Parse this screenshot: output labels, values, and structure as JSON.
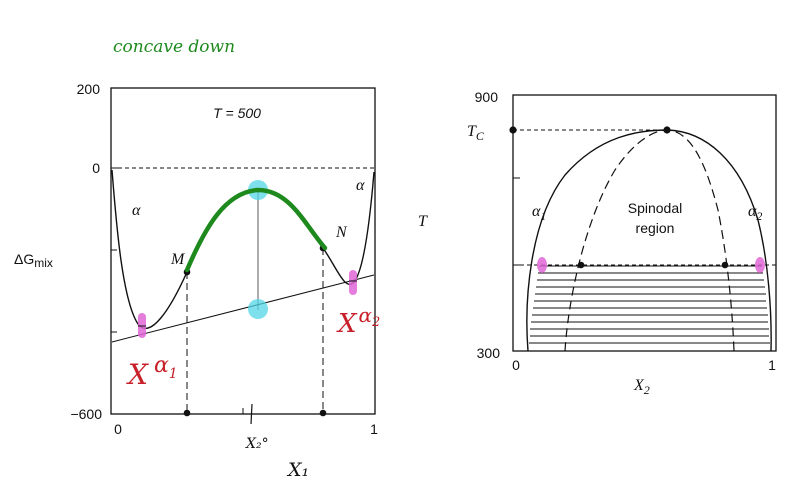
{
  "annotations": {
    "handwritten_note": "concave down",
    "x1_axis_label": "X₁",
    "x2_zero_label": "X₂°",
    "alpha1_note": "X α₁",
    "alpha2_note": "X α₂"
  },
  "left_plot": {
    "temperature_label": "T = 500",
    "y_label": "ΔG",
    "y_label_sub": "mix",
    "y_ticks": [
      "200",
      "0",
      "−600"
    ],
    "x_ticks": [
      "0",
      "1"
    ],
    "phase_left": "α",
    "phase_right": "α",
    "point_m": "M",
    "point_n": "N"
  },
  "right_plot": {
    "y_axis_label": "T",
    "y_ticks": [
      "900",
      "300"
    ],
    "tc_label": "T",
    "tc_sub": "C",
    "x_ticks": [
      "0",
      "1"
    ],
    "x_label": "X",
    "x_label_sub": "2",
    "alpha1": "α",
    "alpha1_sub": "1",
    "alpha2": "α",
    "alpha2_sub": "2",
    "region_line1": "Spinodal",
    "region_line2": "region"
  },
  "colors": {
    "green": "#1e8a1e",
    "cyan": "#53d6e6",
    "magenta": "#e066d6",
    "red": "#c8202a",
    "ink": "#111111"
  }
}
